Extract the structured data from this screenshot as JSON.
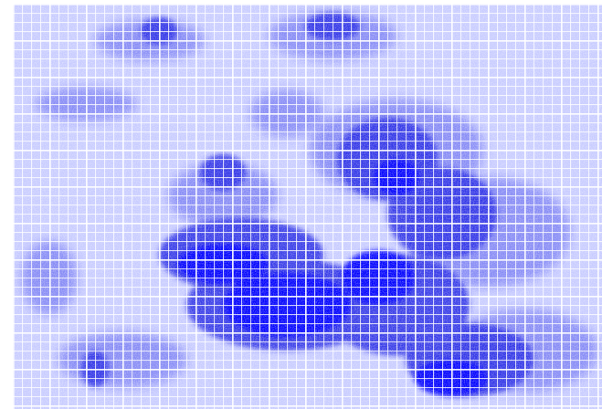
{
  "image": {
    "palette": {
      "background": "#ffffff",
      "light": "#c8ccff",
      "medium": "#7c80f4",
      "dark": "#2a2ee6",
      "deep": "#0000ff",
      "grid": "#ffffff"
    },
    "grid": true
  }
}
